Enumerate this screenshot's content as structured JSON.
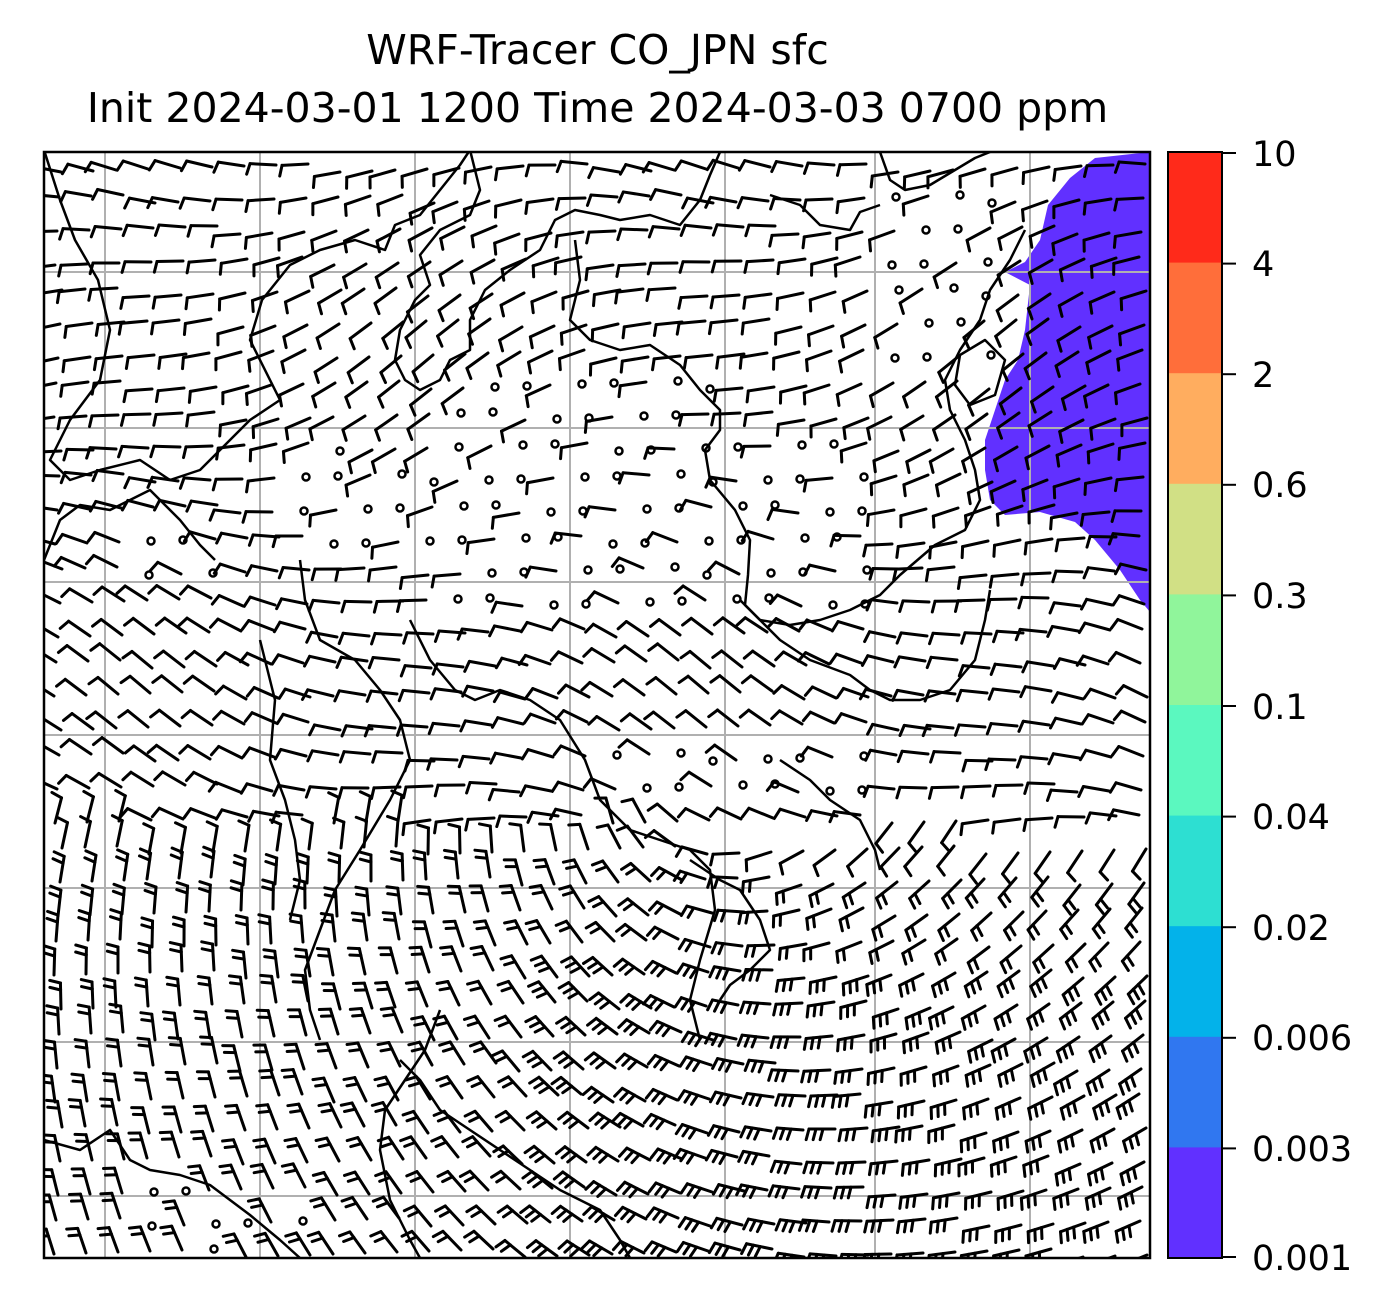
{
  "title": {
    "line1": "WRF-Tracer CO_JPN sfc",
    "line2": "Init 2024-03-01 1200 Time 2024-03-03 0700 ppm"
  },
  "map": {
    "layers": [
      "coastlines",
      "lat-lon gridlines",
      "wind barbs",
      "tracer concentration fill"
    ],
    "gridline_color": "#b0b0b0",
    "barb_color": "#000000",
    "tracer_region": "northeast corner",
    "tracer_color": "#6130ff"
  },
  "colorbar": {
    "tick_labels": [
      "10",
      "4",
      "2",
      "0.6",
      "0.3",
      "0.1",
      "0.04",
      "0.02",
      "0.006",
      "0.003",
      "0.001"
    ],
    "bins": [
      {
        "range": "4-10",
        "color": "#ff2a1a"
      },
      {
        "range": "2-4",
        "color": "#ff6e3a"
      },
      {
        "range": "0.6-2",
        "color": "#ffad5f"
      },
      {
        "range": "0.3-0.6",
        "color": "#d1e085"
      },
      {
        "range": "0.1-0.3",
        "color": "#90f59b"
      },
      {
        "range": "0.04-0.1",
        "color": "#5bf8bf"
      },
      {
        "range": "0.02-0.04",
        "color": "#2ddfd2"
      },
      {
        "range": "0.006-0.02",
        "color": "#03b2ea"
      },
      {
        "range": "0.003-0.006",
        "color": "#3077f0"
      },
      {
        "range": "0.001-0.003",
        "color": "#6130ff"
      }
    ]
  }
}
